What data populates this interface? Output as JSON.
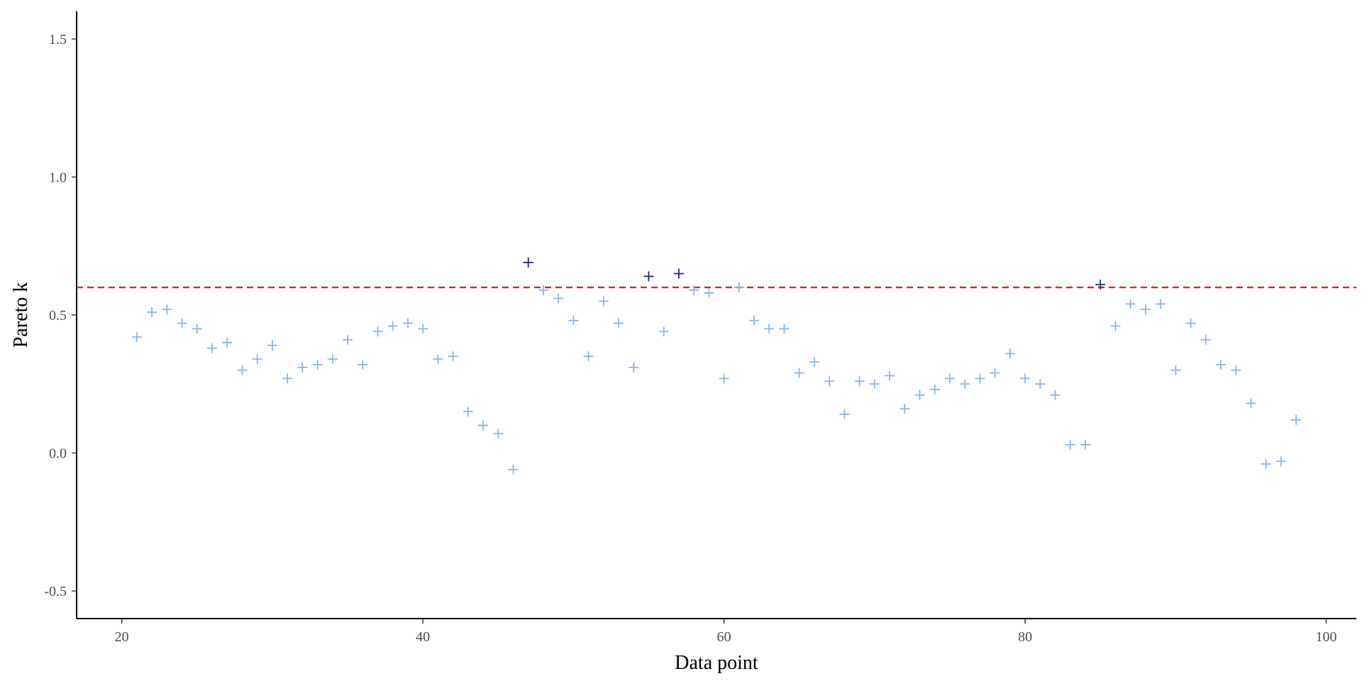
{
  "chart_data": {
    "type": "scatter",
    "xlabel": "Data point",
    "ylabel": "Pareto k",
    "xlim": [
      17,
      102
    ],
    "ylim": [
      -0.6,
      1.6
    ],
    "xticks": [
      20,
      40,
      60,
      80,
      100
    ],
    "yticks": [
      -0.5,
      0.0,
      0.5,
      1.0,
      1.5
    ],
    "ytick_labels": [
      "-0.5",
      "0.0",
      "0.5",
      "1.0",
      "1.5"
    ],
    "xtick_labels": [
      "20",
      "40",
      "60",
      "80",
      "100"
    ],
    "threshold": 0.6,
    "colors": {
      "below": "#8cb3ea",
      "above": "#1f1f8f",
      "threshold": "#e41a1c"
    },
    "x": [
      21,
      22,
      23,
      24,
      25,
      26,
      27,
      28,
      29,
      30,
      31,
      32,
      33,
      34,
      35,
      36,
      37,
      38,
      39,
      40,
      41,
      42,
      43,
      44,
      45,
      46,
      47,
      48,
      49,
      50,
      51,
      52,
      53,
      54,
      55,
      56,
      57,
      58,
      59,
      60,
      61,
      62,
      63,
      64,
      65,
      66,
      67,
      68,
      69,
      70,
      71,
      72,
      73,
      74,
      75,
      76,
      77,
      78,
      79,
      80,
      81,
      82,
      83,
      84,
      85,
      86,
      87,
      88,
      89,
      90,
      91,
      92,
      93,
      94,
      95,
      96,
      97,
      98
    ],
    "y": [
      0.42,
      0.51,
      0.52,
      0.47,
      0.45,
      0.38,
      0.4,
      0.3,
      0.34,
      0.39,
      0.27,
      0.31,
      0.32,
      0.34,
      0.41,
      0.32,
      0.44,
      0.46,
      0.47,
      0.45,
      0.34,
      0.35,
      0.15,
      0.1,
      0.07,
      -0.06,
      0.69,
      0.59,
      0.56,
      0.48,
      0.35,
      0.55,
      0.47,
      0.31,
      0.64,
      0.44,
      0.65,
      0.59,
      0.58,
      0.27,
      0.6,
      0.48,
      0.45,
      0.45,
      0.29,
      0.33,
      0.26,
      0.14,
      0.26,
      0.25,
      0.28,
      0.16,
      0.21,
      0.23,
      0.27,
      0.25,
      0.27,
      0.29,
      0.36,
      0.27,
      0.25,
      0.21,
      0.03,
      0.03,
      0.61,
      0.46,
      0.54,
      0.52,
      0.54,
      0.3,
      0.47,
      0.41,
      0.32,
      0.3,
      0.18,
      -0.04,
      -0.03,
      0.12
    ]
  }
}
